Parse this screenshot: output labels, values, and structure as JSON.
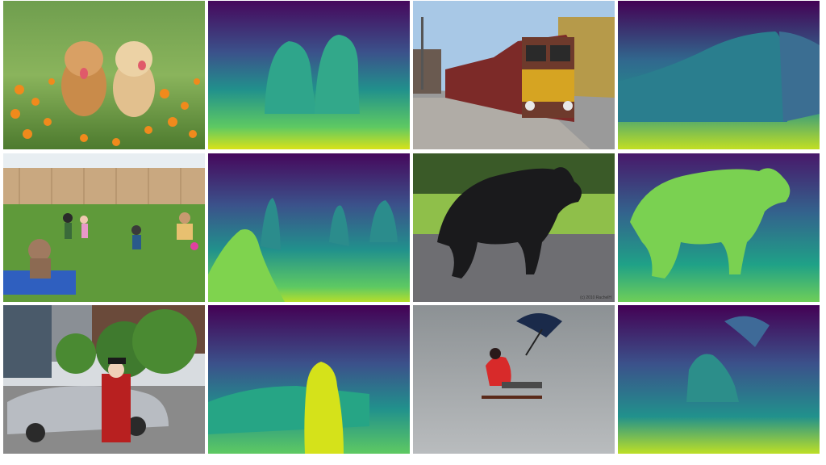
{
  "grid": {
    "rows": 3,
    "columns": 4,
    "layout": "photo-depth-pairs",
    "colormap": "viridis"
  },
  "tiles": [
    {
      "kind": "photo",
      "subject": "two golden retriever puppies in orange flowers"
    },
    {
      "kind": "depth-map",
      "subject": "two golden retriever puppies in orange flowers"
    },
    {
      "kind": "photo",
      "subject": "train at station platform"
    },
    {
      "kind": "depth-map",
      "subject": "train at station platform"
    },
    {
      "kind": "photo",
      "subject": "family playing in backyard"
    },
    {
      "kind": "depth-map",
      "subject": "family playing in backyard"
    },
    {
      "kind": "photo",
      "subject": "black bear walking on pavement"
    },
    {
      "kind": "depth-map",
      "subject": "black bear walking on pavement"
    },
    {
      "kind": "photo",
      "subject": "street with costumed man and car"
    },
    {
      "kind": "depth-map",
      "subject": "street with costumed man and car"
    },
    {
      "kind": "photo",
      "subject": "person on sled with umbrella on ice"
    },
    {
      "kind": "depth-map",
      "subject": "person on sled with umbrella on ice"
    }
  ],
  "credit_text": "(c) 2010 RachelH",
  "colors": {
    "viridis_far": "#440154",
    "viridis_mid": "#21918c",
    "viridis_near": "#fde725"
  }
}
